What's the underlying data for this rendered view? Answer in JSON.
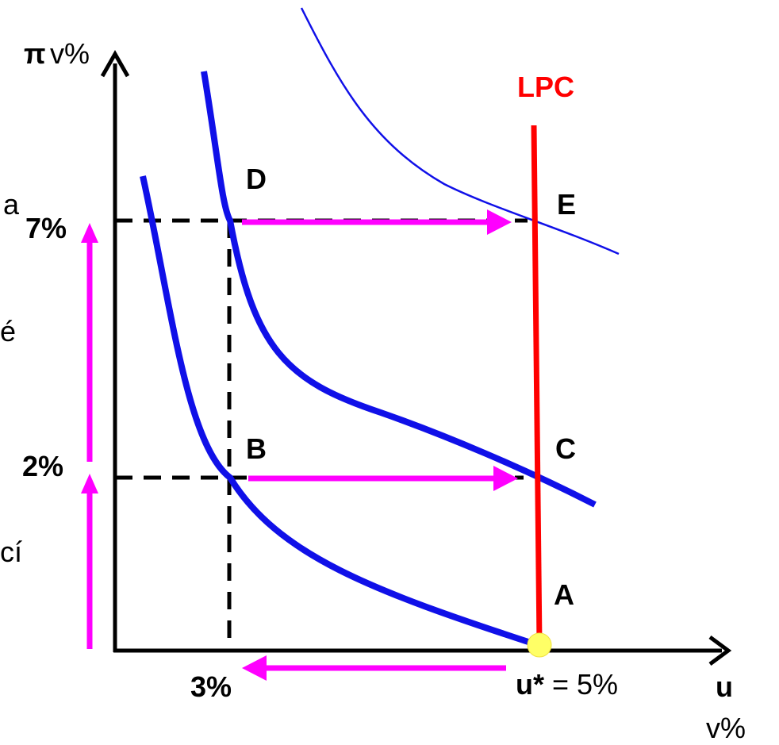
{
  "axes": {
    "y_symbol": "π",
    "y_unit": "v%",
    "x_symbol": "u",
    "x_unit": "v%"
  },
  "ticks": {
    "y_low": "2%",
    "y_high": "7%",
    "x_low": "3%",
    "natural_rate_symbol": "u*",
    "natural_rate_value": " = 5%"
  },
  "points": {
    "A": "A",
    "B": "B",
    "C": "C",
    "D": "D",
    "E": "E"
  },
  "curves": {
    "lpc_label": "LPC"
  },
  "cut_off_text": {
    "t1": "a",
    "t2": "é",
    "t3": "cí"
  },
  "colors": {
    "axis": "#000000",
    "spc_curve": "#1010e8",
    "lpc_line": "#ff0000",
    "arrows": "#ff00ff",
    "natural_point": "#ffff66",
    "dashes": "#000000"
  }
}
